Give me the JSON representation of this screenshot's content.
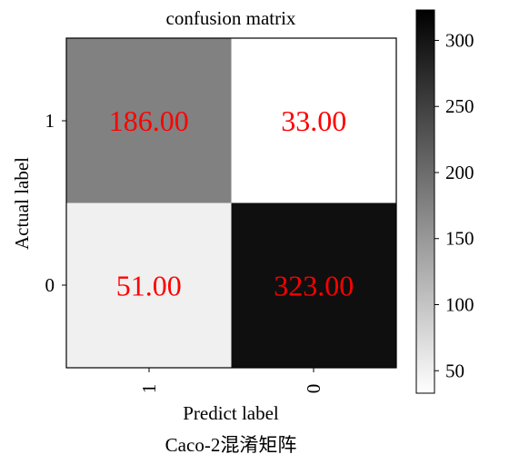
{
  "chart_data": {
    "type": "heatmap",
    "title": "confusion matrix",
    "xlabel": "Predict label",
    "ylabel": "Actual label",
    "caption": "Caco-2混淆矩阵",
    "x_categories": [
      "1",
      "0"
    ],
    "y_categories": [
      "1",
      "0"
    ],
    "values": [
      [
        186.0,
        33.0
      ],
      [
        51.0,
        323.0
      ]
    ],
    "value_labels": [
      [
        "186.00",
        "33.00"
      ],
      [
        "51.00",
        "323.00"
      ]
    ],
    "colormap": "greys",
    "value_range": [
      33,
      323
    ],
    "annotation_color": "#ff0000",
    "colorbar_ticks": [
      50,
      100,
      150,
      200,
      250,
      300
    ]
  }
}
